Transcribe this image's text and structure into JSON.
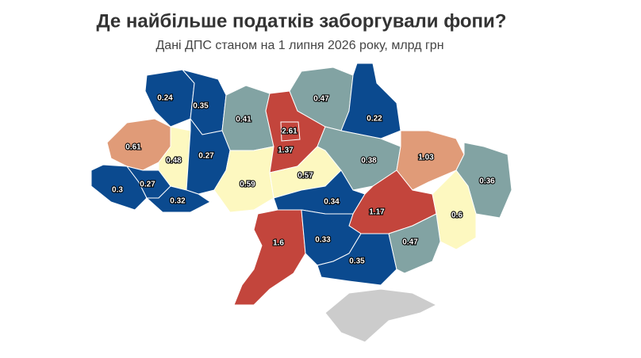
{
  "title": "Де найбільше податків заборгували фопи?",
  "subtitle": "Дані ДПС станом на 1 липня 2026 року, млрд грн",
  "regions": [
    {
      "value": 0.24,
      "color": "#0b4a8f"
    },
    {
      "value": 0.35,
      "color": "#0b4a8f"
    },
    {
      "value": 0.41,
      "color": "#82a3a3"
    },
    {
      "value": 1.37,
      "color": "#c3453c"
    },
    {
      "value": 2.61,
      "color": "#c3453c"
    },
    {
      "value": 0.47,
      "color": "#82a3a3"
    },
    {
      "value": 0.22,
      "color": "#0b4a8f"
    },
    {
      "value": 0.61,
      "color": "#e09b78"
    },
    {
      "value": 0.48,
      "color": "#fdf8c0"
    },
    {
      "value": 0.27,
      "color": "#0b4a8f"
    },
    {
      "value": 0.3,
      "color": "#0b4a8f"
    },
    {
      "value": 0.27,
      "color": "#0b4a8f"
    },
    {
      "value": 0.32,
      "color": "#0b4a8f"
    },
    {
      "value": 0.59,
      "color": "#fdf8c0"
    },
    {
      "value": 0.57,
      "color": "#fdf8c0"
    },
    {
      "value": 0.38,
      "color": "#82a3a3"
    },
    {
      "value": 1.03,
      "color": "#e09b78"
    },
    {
      "value": 0.36,
      "color": "#82a3a3"
    },
    {
      "value": 0.34,
      "color": "#0b4a8f"
    },
    {
      "value": 1.17,
      "color": "#c3453c"
    },
    {
      "value": 0.6,
      "color": "#fdf8c0"
    },
    {
      "value": 1.6,
      "color": "#c3453c"
    },
    {
      "value": 0.33,
      "color": "#0b4a8f"
    },
    {
      "value": 0.35,
      "color": "#0b4a8f"
    },
    {
      "value": 0.47,
      "color": "#82a3a3"
    }
  ]
}
